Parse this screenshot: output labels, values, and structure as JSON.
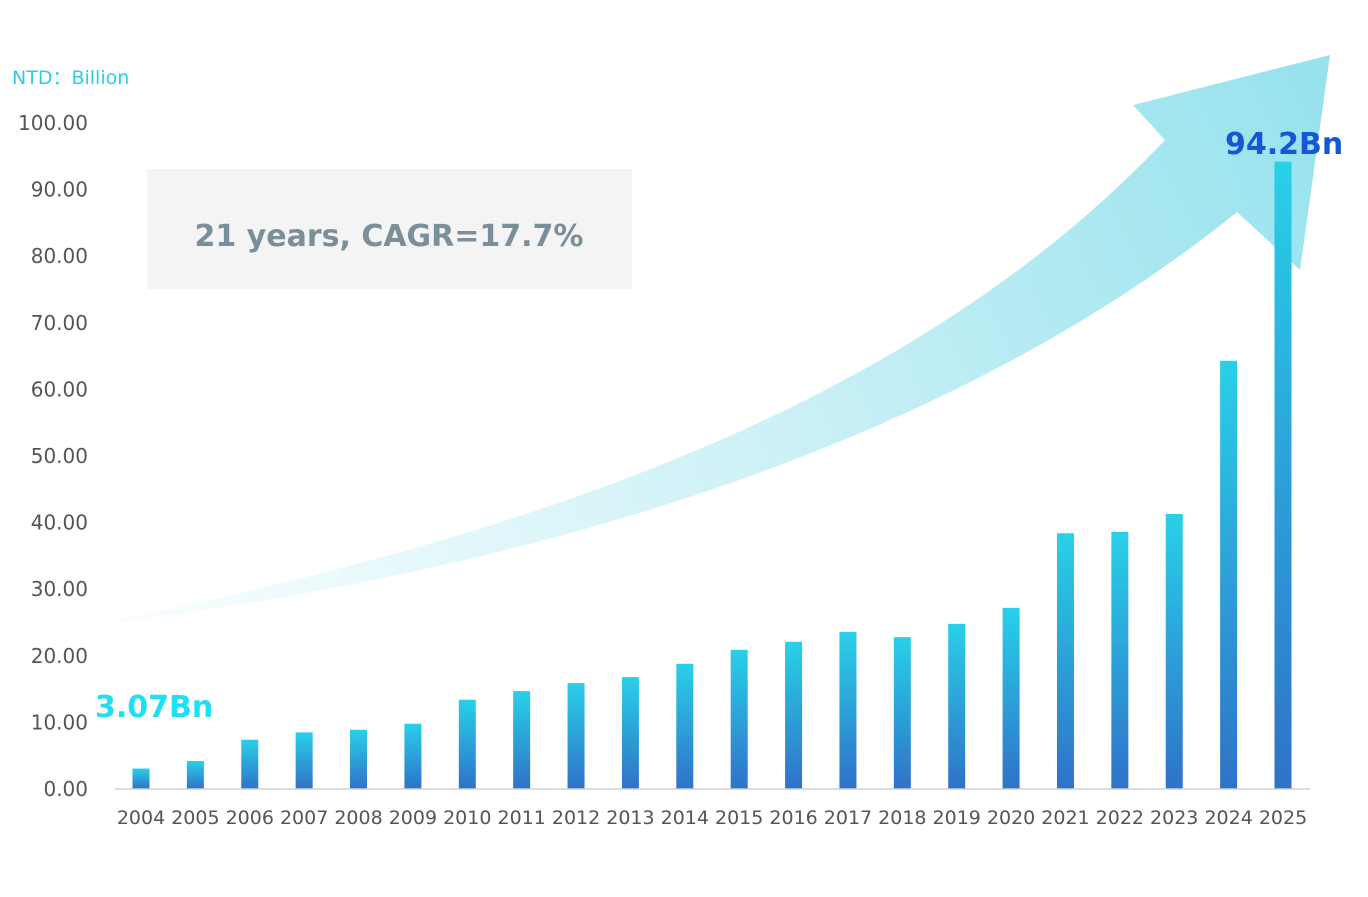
{
  "chart_data": {
    "type": "bar",
    "unit_label": "NTD：Billion",
    "categories": [
      "2004",
      "2005",
      "2006",
      "2007",
      "2008",
      "2009",
      "2010",
      "2011",
      "2012",
      "2013",
      "2014",
      "2015",
      "2016",
      "2017",
      "2018",
      "2019",
      "2020",
      "2021",
      "2022",
      "2023",
      "2024",
      "2025"
    ],
    "values": [
      3.07,
      4.2,
      7.4,
      8.5,
      8.9,
      9.8,
      13.4,
      14.7,
      15.9,
      16.8,
      18.8,
      20.9,
      22.1,
      23.6,
      22.8,
      24.8,
      27.2,
      38.4,
      38.6,
      41.3,
      64.3,
      94.2
    ],
    "ylim": [
      0,
      100
    ],
    "yticks": [
      "0.00",
      "10.00",
      "20.00",
      "30.00",
      "40.00",
      "50.00",
      "60.00",
      "70.00",
      "80.00",
      "90.00",
      "100.00"
    ],
    "grid": false,
    "annotations": {
      "cagr": "21 years, CAGR=17.7%",
      "start_label": "3.07Bn",
      "end_label": "94.2Bn"
    },
    "colors": {
      "bar_top": "#29d0e8",
      "bar_bottom": "#2f72c8",
      "start_label": "#1ee0f5",
      "end_label": "#1557d6",
      "unit_label": "#2ecfe6",
      "cagr_text": "#7a8f9a",
      "cagr_box": "#f4f4f4",
      "arrow": "#8fe0ec"
    }
  }
}
